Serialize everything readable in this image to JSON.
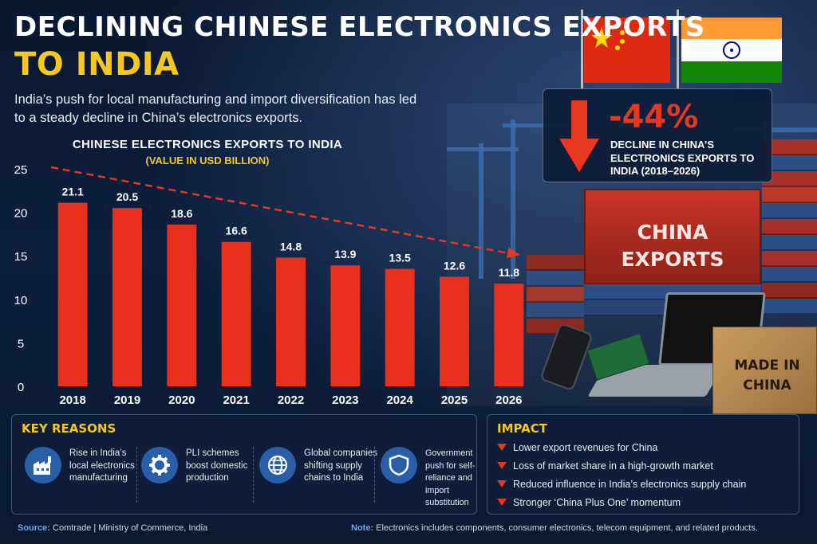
{
  "header": {
    "title_line1": "DECLINING CHINESE ELECTRONICS EXPORTS",
    "title_line2": "TO INDIA",
    "subtitle": "India’s push for local manufacturing and import diversification has led to a steady decline in China’s electronics exports."
  },
  "chart_data": {
    "type": "bar",
    "title": "CHINESE ELECTRONICS EXPORTS TO INDIA",
    "subtitle": "(VALUE IN USD BILLION)",
    "categories": [
      "2018",
      "2019",
      "2020",
      "2021",
      "2022",
      "2023",
      "2024",
      "2025",
      "2026"
    ],
    "values": [
      21.1,
      20.5,
      18.6,
      16.6,
      14.8,
      13.9,
      13.5,
      12.6,
      11.8
    ],
    "ylim": [
      0,
      25
    ],
    "yticks": [
      0,
      5,
      10,
      15,
      20,
      25
    ],
    "bar_color": "#e8301c",
    "trend_arrow": true,
    "grid": false
  },
  "callout": {
    "value": "-44%",
    "description": "DECLINE IN CHINA’S ELECTRONICS EXPORTS TO INDIA (2018–2026)",
    "accent": "#e8361f"
  },
  "illustration": {
    "container_label": "CHINA EXPORTS",
    "box_label": "MADE IN CHINA"
  },
  "key_reasons": {
    "title": "KEY REASONS",
    "items": [
      {
        "icon": "factory-icon",
        "text": "Rise in India’s local electronics manufacturing"
      },
      {
        "icon": "gear-icon",
        "text": "PLI schemes boost domestic production"
      },
      {
        "icon": "globe-icon",
        "text": "Global companies shifting supply chains to India"
      },
      {
        "icon": "shield-icon",
        "text": "Government push for self-reliance and import substitution"
      }
    ]
  },
  "impact": {
    "title": "IMPACT",
    "items": [
      "Lower export revenues for China",
      "Loss of market share in a high-growth market",
      "Reduced influence in India’s electronics supply chain",
      "Stronger ‘China Plus One’ momentum"
    ]
  },
  "footer": {
    "source_label": "Source:",
    "source_text": "Comtrade | Ministry of Commerce, India",
    "note_label": "Note:",
    "note_text": "Electronics includes components, consumer electronics, telecom equipment, and related products."
  },
  "colors": {
    "accent_yellow": "#f4c81c",
    "accent_red": "#e8361f",
    "background": "#0b1a33"
  }
}
